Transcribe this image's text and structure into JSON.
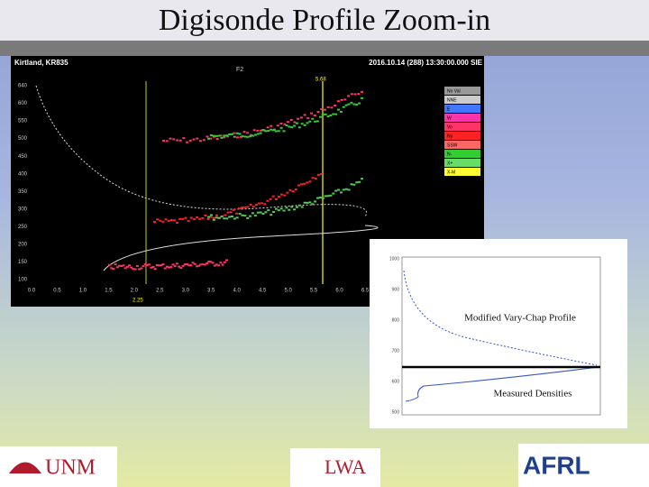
{
  "slide": {
    "title": "Digisonde Profile Zoom-in"
  },
  "ionogram": {
    "station": "Kirtland, KR835",
    "timestamp": "2016.10.14 (288) 13:30:00.000 SIE",
    "layer": "F2",
    "marker_top": "5.68",
    "marker_bottom": "2.25",
    "y_ticks": [
      "640",
      "600",
      "550",
      "500",
      "450",
      "400",
      "350",
      "300",
      "250",
      "200",
      "150",
      "100"
    ],
    "x_ticks": [
      "0.0",
      "0.5",
      "1.0",
      "1.5",
      "2.0",
      "2.5",
      "3.0",
      "3.5",
      "4.0",
      "4.5",
      "5.0",
      "5.5",
      "6.0",
      "6.5"
    ],
    "legend": [
      "No Val",
      "NNE",
      "E",
      "W",
      "Vo",
      "Ny",
      "SSW",
      "N-",
      "X+",
      "X-M"
    ]
  },
  "inset": {
    "y_ticks": [
      "1000",
      "900",
      "800",
      "700",
      "600",
      "500"
    ],
    "annotation_top": "Modified Vary-Chap Profile",
    "annotation_bottom": "Measured Densities"
  },
  "logos": {
    "left": "UNM",
    "middle": "LWA",
    "right": "AFRL"
  }
}
